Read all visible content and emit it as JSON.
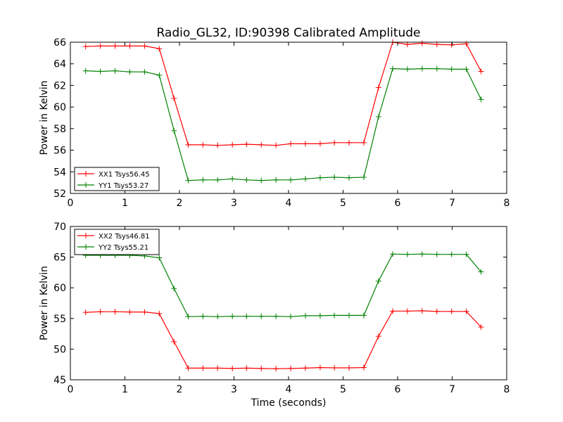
{
  "title": "Radio_GL32, ID:90398 Calibrated Amplitude",
  "chart_data": [
    {
      "type": "line",
      "title": "Radio_GL32, ID:90398 Calibrated Amplitude",
      "xlabel": "",
      "ylabel": "Power in Kelvin",
      "xlim": [
        0,
        8
      ],
      "ylim": [
        52,
        66
      ],
      "xticks": [
        0,
        1,
        2,
        3,
        4,
        5,
        6,
        7,
        8
      ],
      "yticks": [
        52,
        54,
        56,
        58,
        60,
        62,
        64,
        66
      ],
      "grid": false,
      "legend_position": "lower-left",
      "x": [
        0.28,
        0.55,
        0.82,
        1.09,
        1.36,
        1.63,
        1.9,
        2.16,
        2.43,
        2.7,
        2.97,
        3.23,
        3.5,
        3.77,
        4.04,
        4.31,
        4.58,
        4.84,
        5.11,
        5.38,
        5.65,
        5.91,
        6.18,
        6.45,
        6.72,
        6.99,
        7.26,
        7.53
      ],
      "series": [
        {
          "name": "XX1 Tsys56.45",
          "color": "#ff0000",
          "marker": "plus",
          "values": [
            65.6,
            65.65,
            65.65,
            65.65,
            65.65,
            65.4,
            60.8,
            56.5,
            56.5,
            56.45,
            56.5,
            56.55,
            56.5,
            56.45,
            56.6,
            56.6,
            56.6,
            56.7,
            56.7,
            56.7,
            61.8,
            66.0,
            65.8,
            65.9,
            65.8,
            65.75,
            65.85,
            63.3
          ]
        },
        {
          "name": "YY1 Tsys53.27",
          "color": "#008000",
          "marker": "plus",
          "values": [
            63.35,
            63.3,
            63.35,
            63.25,
            63.25,
            62.95,
            57.8,
            53.2,
            53.25,
            53.25,
            53.35,
            53.25,
            53.2,
            53.25,
            53.25,
            53.35,
            53.45,
            53.5,
            53.45,
            53.5,
            59.1,
            63.55,
            63.5,
            63.55,
            63.55,
            63.5,
            63.5,
            60.7
          ]
        }
      ]
    },
    {
      "type": "line",
      "title": "",
      "xlabel": "Time (seconds)",
      "ylabel": "Power in Kelvin",
      "xlim": [
        0,
        8
      ],
      "ylim": [
        45,
        70
      ],
      "xticks": [
        0,
        1,
        2,
        3,
        4,
        5,
        6,
        7,
        8
      ],
      "yticks": [
        45,
        50,
        55,
        60,
        65,
        70
      ],
      "grid": false,
      "legend_position": "upper-left",
      "x": [
        0.28,
        0.55,
        0.82,
        1.09,
        1.36,
        1.63,
        1.9,
        2.16,
        2.43,
        2.7,
        2.97,
        3.23,
        3.5,
        3.77,
        4.04,
        4.31,
        4.58,
        4.84,
        5.11,
        5.38,
        5.65,
        5.91,
        6.18,
        6.45,
        6.72,
        6.99,
        7.26,
        7.53
      ],
      "series": [
        {
          "name": "XX2 Tsys46.81",
          "color": "#ff0000",
          "marker": "plus",
          "values": [
            56.0,
            56.1,
            56.1,
            56.05,
            56.05,
            55.8,
            51.2,
            46.9,
            46.9,
            46.9,
            46.85,
            46.9,
            46.85,
            46.8,
            46.85,
            46.9,
            47.0,
            46.95,
            46.95,
            47.0,
            52.1,
            56.2,
            56.2,
            56.25,
            56.15,
            56.15,
            56.15,
            53.6
          ]
        },
        {
          "name": "YY2 Tsys55.21",
          "color": "#008000",
          "marker": "plus",
          "values": [
            65.3,
            65.3,
            65.3,
            65.3,
            65.2,
            64.9,
            59.9,
            55.3,
            55.35,
            55.3,
            55.35,
            55.35,
            55.35,
            55.35,
            55.3,
            55.45,
            55.45,
            55.5,
            55.5,
            55.5,
            61.1,
            65.5,
            65.45,
            65.5,
            65.45,
            65.45,
            65.45,
            62.6
          ]
        }
      ]
    }
  ]
}
